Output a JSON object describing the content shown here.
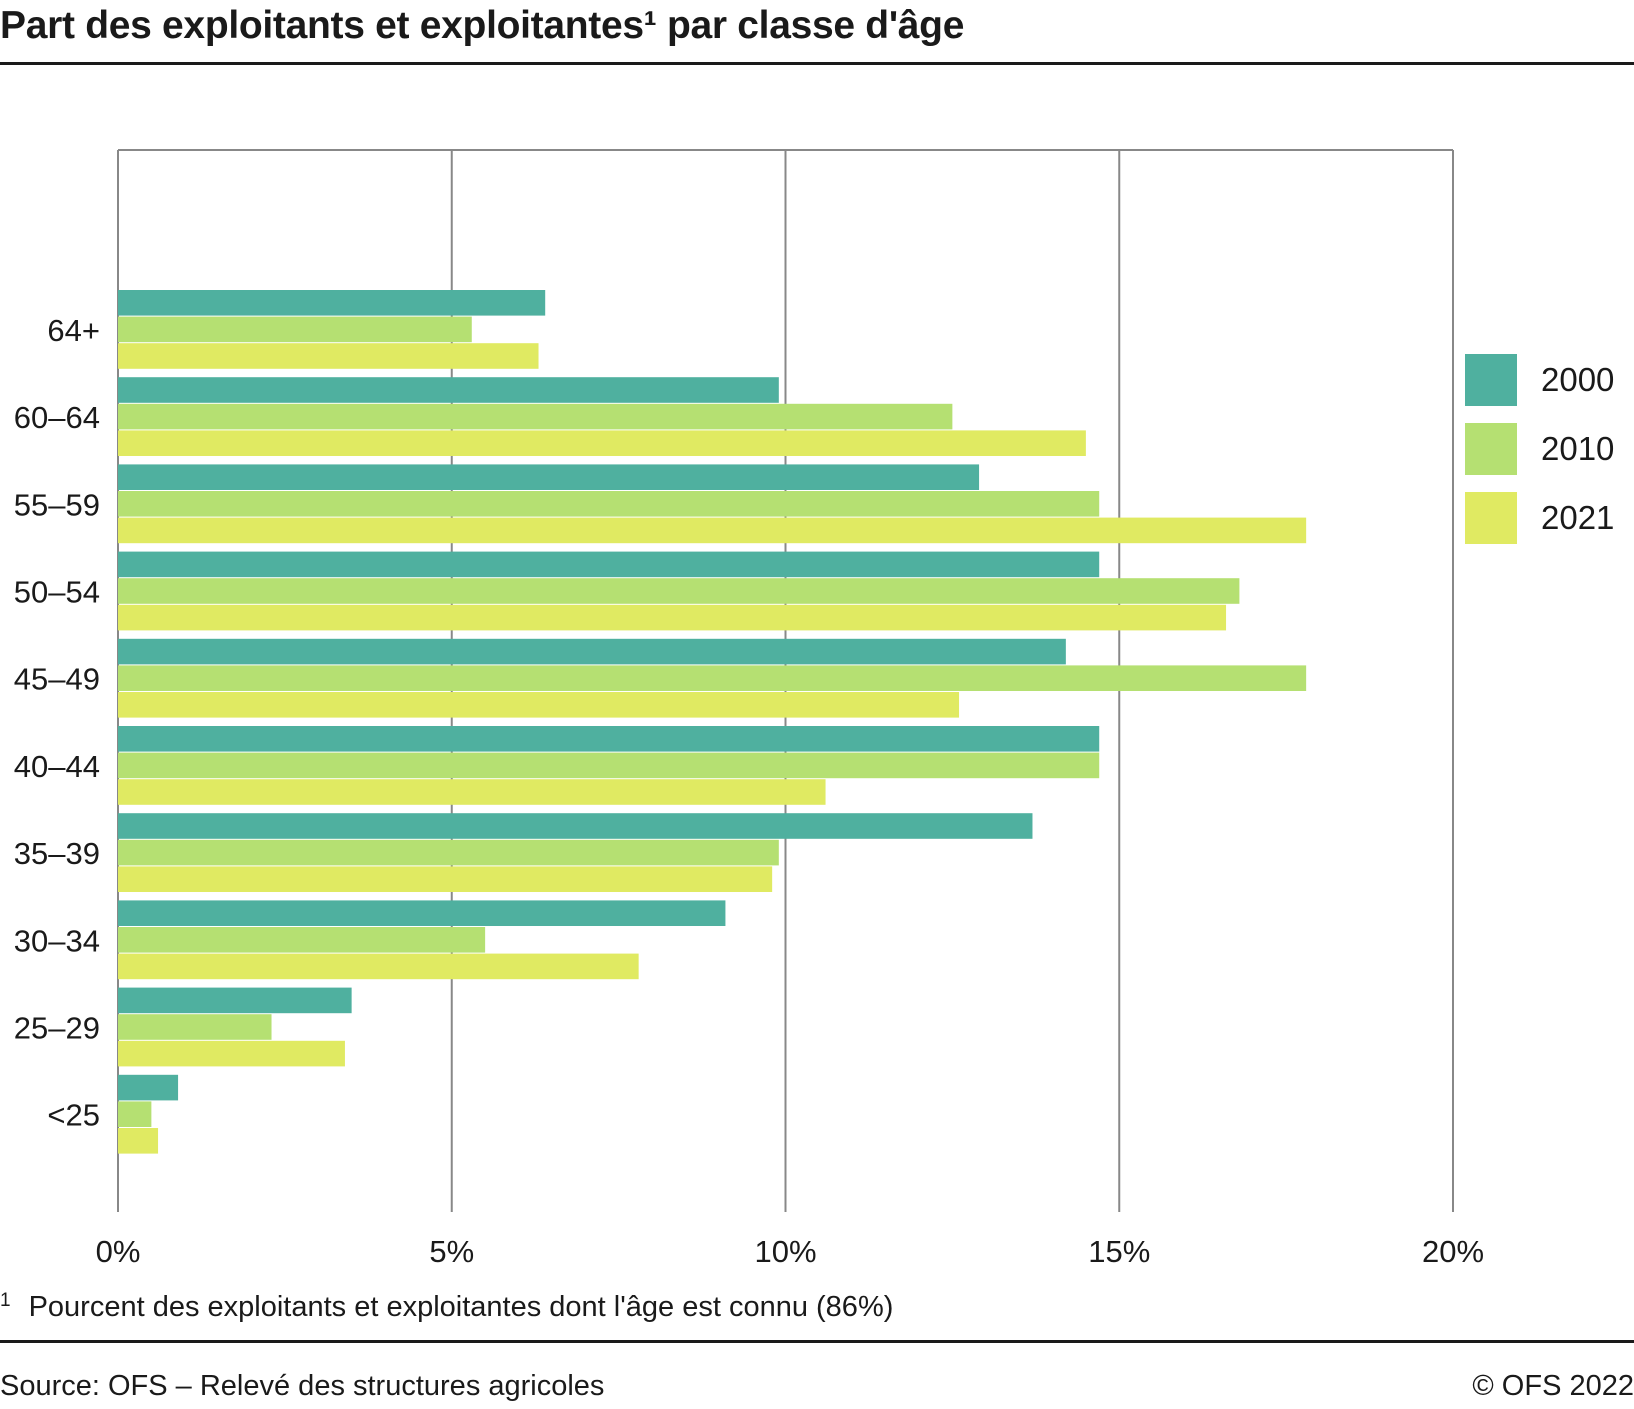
{
  "title": "Part des exploitants et exploitantes¹ par classe d'âge",
  "footnote": {
    "marker": "1",
    "text": "Pourcent des exploitants et exploitantes dont l'âge est connu (86%)"
  },
  "source": "Source: OFS – Relevé des structures agricoles",
  "credit": "© OFS 2022",
  "chart_data": {
    "type": "bar",
    "orientation": "horizontal",
    "categories": [
      "64+",
      "60–64",
      "55–59",
      "50–54",
      "45–49",
      "40–44",
      "35–39",
      "30–34",
      "25–29",
      "<25"
    ],
    "series": [
      {
        "name": "2000",
        "color": "#4fb09f",
        "values": [
          6.4,
          9.9,
          12.9,
          14.7,
          14.2,
          14.7,
          13.7,
          9.1,
          3.5,
          0.9
        ]
      },
      {
        "name": "2010",
        "color": "#b5e072",
        "values": [
          5.3,
          12.5,
          14.7,
          16.8,
          17.8,
          14.7,
          9.9,
          5.5,
          2.3,
          0.5
        ]
      },
      {
        "name": "2021",
        "color": "#e0ea62",
        "values": [
          6.3,
          14.5,
          17.8,
          16.6,
          12.6,
          10.6,
          9.8,
          7.8,
          3.4,
          0.6
        ]
      }
    ],
    "xlim": [
      0,
      20
    ],
    "xticks": [
      "0%",
      "5%",
      "10%",
      "15%",
      "20%"
    ],
    "xtick_values": [
      0,
      5,
      10,
      15,
      20
    ],
    "grid": true,
    "legend_position": "right"
  }
}
